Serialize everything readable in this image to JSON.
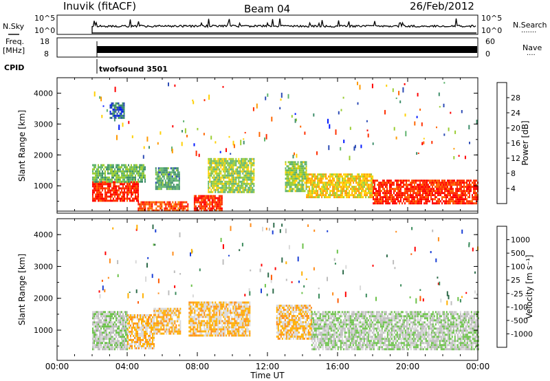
{
  "header": {
    "station": "Inuvik (fitACF)",
    "beam": "Beam 04",
    "date": "26/Feb/2012"
  },
  "strips": {
    "nsky": {
      "label": "N.Sky",
      "top_tick": "10^5",
      "bottom_tick": "10^0",
      "right_label": "N.Search",
      "right_top": "10^5",
      "right_bottom": "10^0"
    },
    "freq": {
      "label_line1": "Freq.",
      "label_line2": "[MHz]",
      "top_tick": "18",
      "bottom_tick": "8",
      "right_label": "Nave",
      "right_top": "60",
      "right_bottom": "0"
    },
    "cpid": {
      "label": "CPID",
      "value": "twofsound 3501"
    }
  },
  "panels": {
    "power": {
      "ylabel": "Slant Range [km]",
      "yticks": [
        "1000",
        "2000",
        "3000",
        "4000"
      ],
      "colorbar_label": "Power [dB]",
      "colorbar_ticks": [
        "4",
        "8",
        "12",
        "16",
        "20",
        "24",
        "28"
      ]
    },
    "velocity": {
      "ylabel": "Slant Range [km]",
      "yticks": [
        "1000",
        "2000",
        "3000",
        "4000"
      ],
      "colorbar_label": "Velocity [m s⁻¹]",
      "colorbar_ticks": [
        "1000",
        "500",
        "100",
        "25",
        "-25",
        "-100",
        "-500",
        "-1000"
      ]
    }
  },
  "xaxis": {
    "label": "Time UT",
    "ticks": [
      "00:00",
      "04:00",
      "08:00",
      "12:00",
      "16:00",
      "20:00",
      "00:00"
    ]
  },
  "colors": {
    "power_scale": [
      "#0019ff",
      "#2c4bb5",
      "#3f8f6b",
      "#5fb36e",
      "#9acd32",
      "#ffd000",
      "#ff9a00",
      "#ff6600",
      "#ff3000",
      "#ff0000"
    ],
    "velocity_scale": [
      "#1a3fd6",
      "#2d6b4a",
      "#3c8c5c",
      "#6cc24a",
      "#bdbdbd",
      "#d9d9d9",
      "#ffb000",
      "#ff8c1a",
      "#ff5a00",
      "#ff0000"
    ]
  },
  "chart_data": [
    {
      "type": "heatmap",
      "title": "Power",
      "xlabel": "Time UT",
      "ylabel": "Slant Range [km]",
      "xlim": [
        0,
        24
      ],
      "ylim": [
        180,
        4500
      ],
      "colorbar": {
        "label": "Power [dB]",
        "range": [
          0,
          32
        ],
        "ticks": [
          4,
          8,
          12,
          16,
          20,
          24,
          28
        ]
      },
      "data_start_hour": 2.0,
      "regions": [
        {
          "t0": 2.0,
          "t1": 4.6,
          "r0": 500,
          "r1": 1150,
          "value": 28
        },
        {
          "t0": 2.0,
          "t1": 5.0,
          "r0": 1150,
          "r1": 1700,
          "value": 12
        },
        {
          "t0": 3.0,
          "t1": 3.8,
          "r0": 3200,
          "r1": 3700,
          "value": 6
        },
        {
          "t0": 4.6,
          "t1": 7.5,
          "r0": 180,
          "r1": 500,
          "value": 26
        },
        {
          "t0": 5.6,
          "t1": 7.0,
          "r0": 900,
          "r1": 1600,
          "value": 10
        },
        {
          "t0": 7.8,
          "t1": 9.4,
          "r0": 180,
          "r1": 700,
          "value": 28
        },
        {
          "t0": 8.6,
          "t1": 11.2,
          "r0": 800,
          "r1": 1900,
          "value": 14
        },
        {
          "t0": 13.0,
          "t1": 14.2,
          "r0": 800,
          "r1": 1800,
          "value": 14
        },
        {
          "t0": 14.2,
          "t1": 18.0,
          "r0": 600,
          "r1": 1400,
          "value": 18
        },
        {
          "t0": 18.0,
          "t1": 24.0,
          "r0": 400,
          "r1": 1200,
          "value": 28
        }
      ]
    },
    {
      "type": "heatmap",
      "title": "Velocity",
      "xlabel": "Time UT",
      "ylabel": "Slant Range [km]",
      "xlim": [
        0,
        24
      ],
      "ylim": [
        180,
        4500
      ],
      "colorbar": {
        "label": "Velocity [m s⁻¹]",
        "range": [
          -1200,
          1200
        ],
        "ticks": [
          1000,
          500,
          100,
          25,
          -25,
          -100,
          -500,
          -1000
        ]
      },
      "data_start_hour": 2.0,
      "regions": [
        {
          "t0": 2.0,
          "t1": 4.0,
          "r0": 400,
          "r1": 1600,
          "value": -150
        },
        {
          "t0": 4.0,
          "t1": 5.5,
          "r0": 400,
          "r1": 1500,
          "value": 300
        },
        {
          "t0": 5.5,
          "t1": 7.0,
          "r0": 900,
          "r1": 1700,
          "value": 300
        },
        {
          "t0": 7.5,
          "t1": 11.0,
          "r0": 800,
          "r1": 1900,
          "value": 300
        },
        {
          "t0": 12.5,
          "t1": 14.5,
          "r0": 700,
          "r1": 1800,
          "value": 300
        },
        {
          "t0": 14.5,
          "t1": 24.0,
          "r0": 400,
          "r1": 1600,
          "value": -150
        }
      ]
    }
  ]
}
